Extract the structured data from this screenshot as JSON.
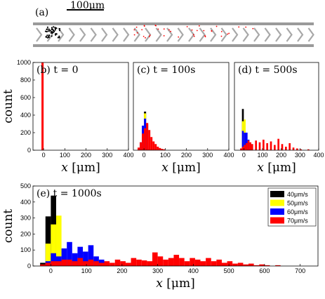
{
  "figure": {
    "panel_a": {
      "label": "(a)",
      "scale_bar": "100μm"
    },
    "legend": {
      "entries": [
        {
          "label": "40μm/s",
          "color": "#000000"
        },
        {
          "label": "50μm/s",
          "color": "#ffff00"
        },
        {
          "label": "60μm/s",
          "color": "#0000ff"
        },
        {
          "label": "70μm/s",
          "color": "#ff0000"
        }
      ]
    }
  },
  "chart_data": [
    {
      "type": "bar",
      "panel": "(b)",
      "annotation": "t = 0",
      "xlabel": "x [μm]",
      "ylabel": "count",
      "xlim": [
        -50,
        400
      ],
      "ylim": [
        0,
        1000
      ],
      "xticks": [
        0,
        100,
        200,
        300,
        400
      ],
      "yticks": [
        0,
        200,
        400,
        600,
        800,
        1000
      ],
      "bin_width": 10,
      "bins": [
        {
          "x": -10,
          "values": [
            0,
            0,
            0,
            1000
          ]
        }
      ]
    },
    {
      "type": "bar",
      "panel": "(c)",
      "annotation": "t = 100s",
      "xlabel": "x [μm]",
      "ylabel": "",
      "xlim": [
        -50,
        400
      ],
      "ylim": [
        0,
        1000
      ],
      "xticks": [
        0,
        100,
        200,
        300,
        400
      ],
      "bin_width": 10,
      "bins": [
        {
          "x": -30,
          "values": [
            0,
            0,
            0,
            30
          ]
        },
        {
          "x": -20,
          "values": [
            0,
            0,
            90,
            90
          ]
        },
        {
          "x": -10,
          "values": [
            0,
            250,
            280,
            190
          ]
        },
        {
          "x": 0,
          "values": [
            440,
            420,
            360,
            250
          ]
        },
        {
          "x": 10,
          "values": [
            0,
            0,
            300,
            310
          ]
        },
        {
          "x": 20,
          "values": [
            0,
            0,
            0,
            230
          ]
        },
        {
          "x": 30,
          "values": [
            0,
            0,
            0,
            150
          ]
        },
        {
          "x": 40,
          "values": [
            0,
            0,
            0,
            100
          ]
        },
        {
          "x": 50,
          "values": [
            0,
            0,
            0,
            70
          ]
        },
        {
          "x": 60,
          "values": [
            0,
            0,
            0,
            40
          ]
        },
        {
          "x": 70,
          "values": [
            0,
            0,
            0,
            25
          ]
        },
        {
          "x": 80,
          "values": [
            0,
            0,
            0,
            15
          ]
        },
        {
          "x": 90,
          "values": [
            0,
            0,
            0,
            10
          ]
        }
      ]
    },
    {
      "type": "bar",
      "panel": "(d)",
      "annotation": "t = 500s",
      "xlabel": "x [μm]",
      "ylabel": "",
      "xlim": [
        -50,
        400
      ],
      "ylim": [
        0,
        1000
      ],
      "xticks": [
        0,
        100,
        200,
        300,
        400
      ],
      "bin_width": 10,
      "bins": [
        {
          "x": -20,
          "values": [
            0,
            0,
            0,
            20
          ]
        },
        {
          "x": -10,
          "values": [
            470,
            330,
            220,
            40
          ]
        },
        {
          "x": 0,
          "values": [
            0,
            350,
            200,
            60
          ]
        },
        {
          "x": 10,
          "values": [
            0,
            0,
            200,
            80
          ]
        },
        {
          "x": 20,
          "values": [
            0,
            0,
            120,
            110
          ]
        },
        {
          "x": 30,
          "values": [
            0,
            0,
            0,
            90
          ]
        },
        {
          "x": 40,
          "values": [
            0,
            0,
            0,
            70
          ]
        },
        {
          "x": 60,
          "values": [
            0,
            0,
            0,
            110
          ]
        },
        {
          "x": 80,
          "values": [
            0,
            0,
            0,
            90
          ]
        },
        {
          "x": 100,
          "values": [
            0,
            0,
            0,
            120
          ]
        },
        {
          "x": 120,
          "values": [
            0,
            0,
            0,
            80
          ]
        },
        {
          "x": 140,
          "values": [
            0,
            0,
            0,
            100
          ]
        },
        {
          "x": 160,
          "values": [
            0,
            0,
            0,
            60
          ]
        },
        {
          "x": 180,
          "values": [
            0,
            0,
            0,
            130
          ]
        },
        {
          "x": 200,
          "values": [
            0,
            0,
            0,
            70
          ]
        },
        {
          "x": 220,
          "values": [
            0,
            0,
            0,
            40
          ]
        },
        {
          "x": 240,
          "values": [
            0,
            0,
            0,
            80
          ]
        },
        {
          "x": 260,
          "values": [
            0,
            0,
            0,
            30
          ]
        },
        {
          "x": 280,
          "values": [
            0,
            0,
            0,
            20
          ]
        },
        {
          "x": 300,
          "values": [
            0,
            0,
            0,
            10
          ]
        },
        {
          "x": 340,
          "values": [
            0,
            0,
            0,
            10
          ]
        }
      ]
    },
    {
      "type": "bar",
      "panel": "(e)",
      "annotation": "t = 1000s",
      "xlabel": "x [μm]",
      "ylabel": "count",
      "xlim": [
        -50,
        750
      ],
      "ylim": [
        0,
        500
      ],
      "xticks": [
        0,
        100,
        200,
        300,
        400,
        500,
        600,
        700
      ],
      "yticks": [
        0,
        100,
        200,
        300,
        400,
        500
      ],
      "bin_width": 15,
      "series": [
        {
          "name": "40μm/s",
          "color": "#000000"
        },
        {
          "name": "50μm/s",
          "color": "#ffff00"
        },
        {
          "name": "60μm/s",
          "color": "#0000ff"
        },
        {
          "name": "70μm/s",
          "color": "#ff0000"
        }
      ],
      "bins": [
        {
          "x": -30,
          "values": [
            20,
            0,
            0,
            10
          ]
        },
        {
          "x": -15,
          "values": [
            310,
            140,
            30,
            20
          ]
        },
        {
          "x": 0,
          "values": [
            440,
            260,
            80,
            30
          ]
        },
        {
          "x": 15,
          "values": [
            0,
            315,
            60,
            30
          ]
        },
        {
          "x": 30,
          "values": [
            0,
            0,
            110,
            40
          ]
        },
        {
          "x": 45,
          "values": [
            0,
            0,
            150,
            40
          ]
        },
        {
          "x": 60,
          "values": [
            0,
            0,
            80,
            30
          ]
        },
        {
          "x": 75,
          "values": [
            0,
            0,
            120,
            50
          ]
        },
        {
          "x": 90,
          "values": [
            0,
            0,
            90,
            30
          ]
        },
        {
          "x": 105,
          "values": [
            0,
            0,
            130,
            40
          ]
        },
        {
          "x": 120,
          "values": [
            0,
            0,
            60,
            30
          ]
        },
        {
          "x": 135,
          "values": [
            0,
            0,
            40,
            20
          ]
        },
        {
          "x": 150,
          "values": [
            0,
            0,
            0,
            30
          ]
        },
        {
          "x": 165,
          "values": [
            0,
            0,
            0,
            20
          ]
        },
        {
          "x": 180,
          "values": [
            0,
            0,
            0,
            40
          ]
        },
        {
          "x": 195,
          "values": [
            0,
            0,
            0,
            30
          ]
        },
        {
          "x": 210,
          "values": [
            0,
            0,
            0,
            20
          ]
        },
        {
          "x": 225,
          "values": [
            0,
            0,
            0,
            50
          ]
        },
        {
          "x": 240,
          "values": [
            0,
            0,
            0,
            40
          ]
        },
        {
          "x": 255,
          "values": [
            0,
            0,
            0,
            35
          ]
        },
        {
          "x": 270,
          "values": [
            0,
            0,
            0,
            30
          ]
        },
        {
          "x": 285,
          "values": [
            0,
            0,
            0,
            85
          ]
        },
        {
          "x": 300,
          "values": [
            0,
            0,
            0,
            60
          ]
        },
        {
          "x": 315,
          "values": [
            0,
            0,
            0,
            40
          ]
        },
        {
          "x": 330,
          "values": [
            0,
            0,
            0,
            50
          ]
        },
        {
          "x": 345,
          "values": [
            0,
            0,
            0,
            70
          ]
        },
        {
          "x": 360,
          "values": [
            0,
            0,
            0,
            50
          ]
        },
        {
          "x": 375,
          "values": [
            0,
            0,
            0,
            30
          ]
        },
        {
          "x": 390,
          "values": [
            0,
            0,
            0,
            50
          ]
        },
        {
          "x": 405,
          "values": [
            0,
            0,
            0,
            40
          ]
        },
        {
          "x": 420,
          "values": [
            0,
            0,
            0,
            30
          ]
        },
        {
          "x": 435,
          "values": [
            0,
            0,
            0,
            50
          ]
        },
        {
          "x": 450,
          "values": [
            0,
            0,
            0,
            30
          ]
        },
        {
          "x": 465,
          "values": [
            0,
            0,
            0,
            40
          ]
        },
        {
          "x": 480,
          "values": [
            0,
            0,
            0,
            20
          ]
        },
        {
          "x": 495,
          "values": [
            0,
            0,
            0,
            30
          ]
        },
        {
          "x": 510,
          "values": [
            0,
            0,
            0,
            15
          ]
        },
        {
          "x": 525,
          "values": [
            0,
            0,
            0,
            20
          ]
        },
        {
          "x": 540,
          "values": [
            0,
            0,
            0,
            10
          ]
        },
        {
          "x": 555,
          "values": [
            0,
            0,
            0,
            15
          ]
        },
        {
          "x": 570,
          "values": [
            0,
            0,
            0,
            5
          ]
        },
        {
          "x": 585,
          "values": [
            0,
            0,
            0,
            10
          ]
        },
        {
          "x": 600,
          "values": [
            0,
            0,
            0,
            5
          ]
        },
        {
          "x": 630,
          "values": [
            0,
            0,
            0,
            5
          ]
        }
      ]
    }
  ]
}
